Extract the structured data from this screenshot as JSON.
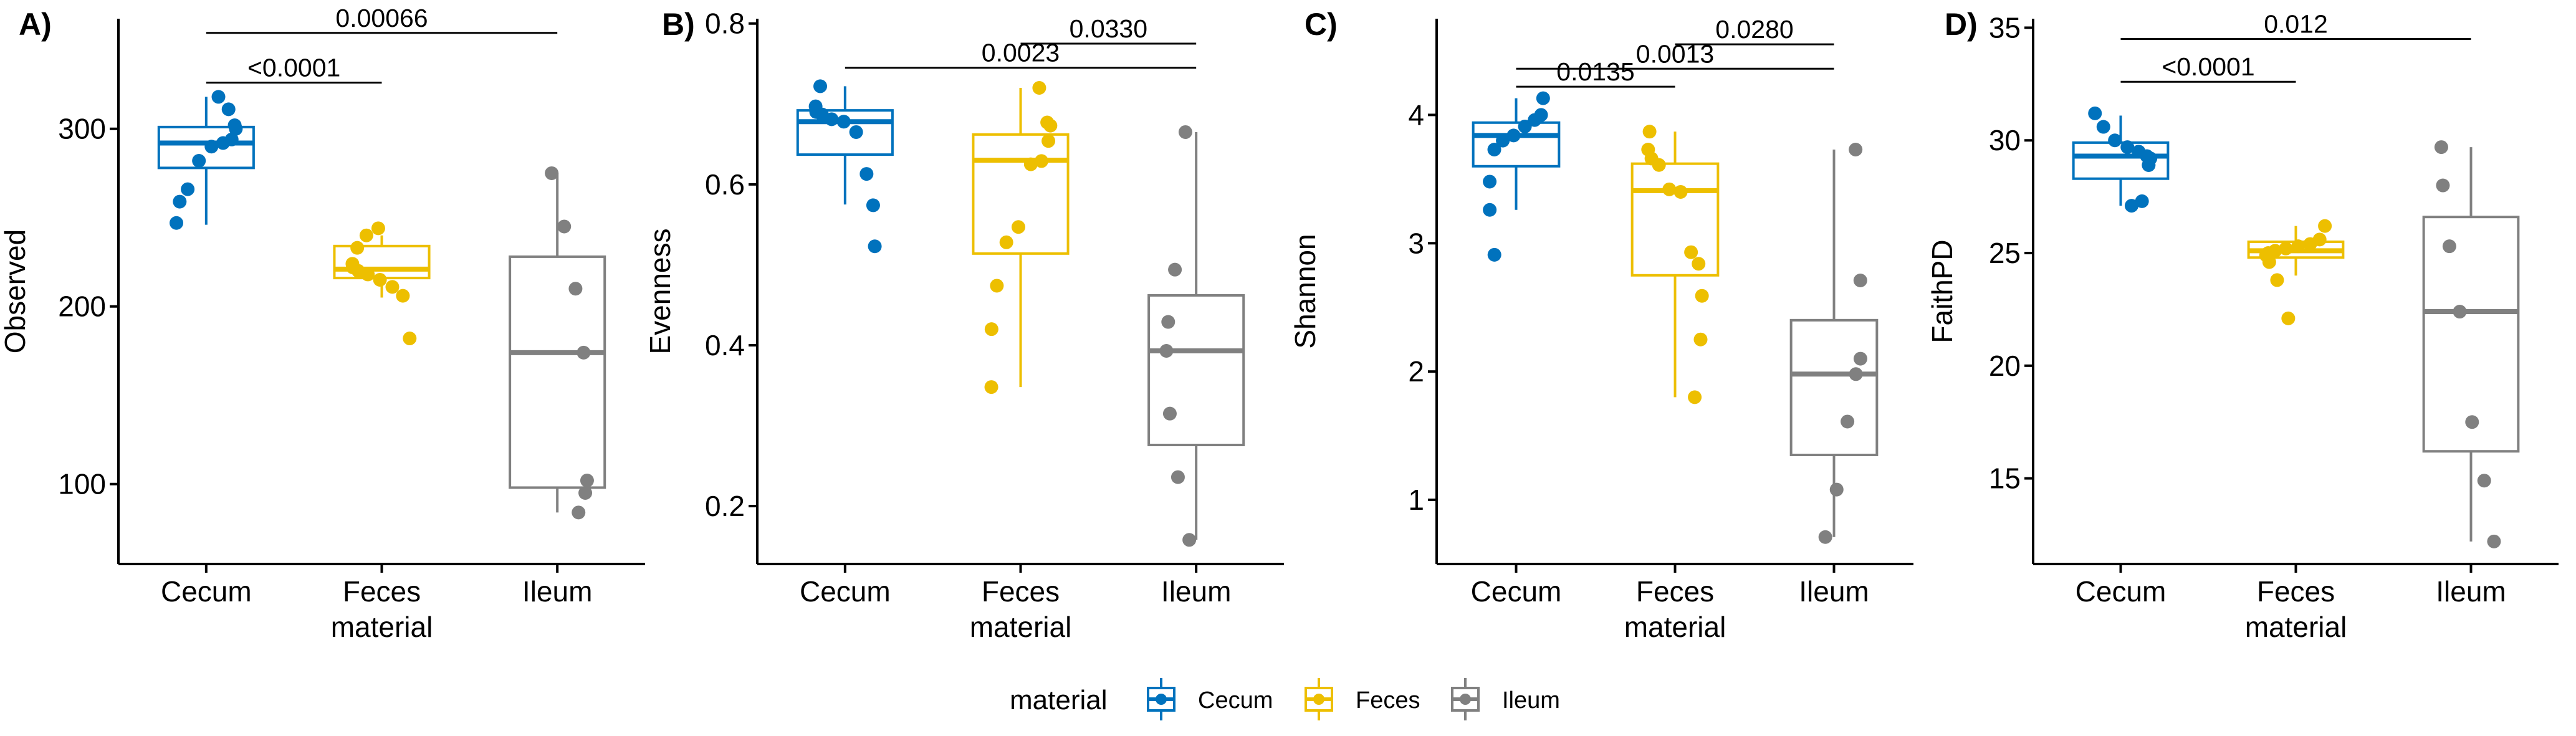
{
  "chart_data": [
    {
      "type": "box",
      "panel_label": "A)",
      "ylabel": "Observed",
      "xlabel": "material",
      "categories": [
        "Cecum",
        "Feces",
        "Ileum"
      ],
      "ylim": [
        55,
        362
      ],
      "yticks": [
        100,
        200,
        300
      ],
      "boxes": [
        {
          "category": "Cecum",
          "lower_whisker": 246,
          "q1": 278,
          "median": 292,
          "q3": 301,
          "upper_whisker": 318
        },
        {
          "category": "Feces",
          "lower_whisker": 205,
          "q1": 216,
          "median": 221,
          "q3": 234,
          "upper_whisker": 240
        },
        {
          "category": "Ileum",
          "lower_whisker": 84,
          "q1": 98,
          "median": 174,
          "q3": 228,
          "upper_whisker": 275
        }
      ],
      "points": [
        {
          "category": "Cecum",
          "values": [
            318,
            311,
            302,
            300,
            294,
            292,
            290,
            282,
            266,
            259,
            247
          ]
        },
        {
          "category": "Feces",
          "values": [
            244,
            240,
            233,
            224,
            222,
            220,
            218,
            215,
            211,
            206,
            182
          ]
        },
        {
          "category": "Ileum",
          "values": [
            275,
            245,
            210,
            174,
            102,
            95,
            84
          ]
        }
      ],
      "comparisons": [
        {
          "groups": [
            "Cecum",
            "Feces"
          ],
          "label": "<0.0001",
          "y": 326
        },
        {
          "groups": [
            "Cecum",
            "Ileum"
          ],
          "label": "0.00066",
          "y": 354
        }
      ]
    },
    {
      "type": "box",
      "panel_label": "B)",
      "ylabel": "Evenness",
      "xlabel": "material",
      "categories": [
        "Cecum",
        "Feces",
        "Ileum"
      ],
      "ylim": [
        0.128,
        0.806
      ],
      "yticks": [
        0.2,
        0.4,
        0.6,
        0.8
      ],
      "boxes": [
        {
          "category": "Cecum",
          "lower_whisker": 0.575,
          "q1": 0.637,
          "median": 0.678,
          "q3": 0.692,
          "upper_whisker": 0.722
        },
        {
          "category": "Feces",
          "lower_whisker": 0.348,
          "q1": 0.514,
          "median": 0.63,
          "q3": 0.662,
          "upper_whisker": 0.72
        },
        {
          "category": "Ileum",
          "lower_whisker": 0.158,
          "q1": 0.276,
          "median": 0.393,
          "q3": 0.462,
          "upper_whisker": 0.665
        }
      ],
      "points": [
        {
          "category": "Cecum",
          "values": [
            0.722,
            0.697,
            0.69,
            0.687,
            0.681,
            0.678,
            0.665,
            0.613,
            0.574,
            0.523
          ]
        },
        {
          "category": "Feces",
          "values": [
            0.72,
            0.677,
            0.673,
            0.654,
            0.629,
            0.625,
            0.547,
            0.528,
            0.474,
            0.42,
            0.348
          ]
        },
        {
          "category": "Ileum",
          "values": [
            0.665,
            0.494,
            0.429,
            0.393,
            0.315,
            0.236,
            0.158
          ]
        }
      ],
      "comparisons": [
        {
          "groups": [
            "Feces",
            "Ileum"
          ],
          "label": "0.0330",
          "y": 0.775
        },
        {
          "groups": [
            "Cecum",
            "Ileum"
          ],
          "label": "0.0023",
          "y": 0.745
        }
      ]
    },
    {
      "type": "box",
      "panel_label": "C)",
      "ylabel": "Shannon",
      "xlabel": "material",
      "categories": [
        "Cecum",
        "Feces",
        "Ileum"
      ],
      "ylim": [
        0.5,
        4.75
      ],
      "yticks": [
        1,
        2,
        3,
        4
      ],
      "boxes": [
        {
          "category": "Cecum",
          "lower_whisker": 3.26,
          "q1": 3.6,
          "median": 3.84,
          "q3": 3.94,
          "upper_whisker": 4.13
        },
        {
          "category": "Feces",
          "lower_whisker": 1.8,
          "q1": 2.75,
          "median": 3.41,
          "q3": 3.62,
          "upper_whisker": 3.87
        },
        {
          "category": "Ileum",
          "lower_whisker": 0.71,
          "q1": 1.35,
          "median": 1.98,
          "q3": 2.4,
          "upper_whisker": 3.73
        }
      ],
      "points": [
        {
          "category": "Cecum",
          "values": [
            4.13,
            4.0,
            3.96,
            3.91,
            3.84,
            3.8,
            3.73,
            3.48,
            3.26,
            2.91
          ]
        },
        {
          "category": "Feces",
          "values": [
            3.87,
            3.73,
            3.66,
            3.61,
            3.42,
            3.4,
            2.93,
            2.84,
            2.59,
            2.25,
            1.8
          ]
        },
        {
          "category": "Ileum",
          "values": [
            3.73,
            2.71,
            2.1,
            1.98,
            1.61,
            1.08,
            0.71
          ]
        }
      ],
      "comparisons": [
        {
          "groups": [
            "Feces",
            "Ileum"
          ],
          "label": "0.0280",
          "y": 4.55
        },
        {
          "groups": [
            "Cecum",
            "Ileum"
          ],
          "label": "0.0013",
          "y": 4.36
        },
        {
          "groups": [
            "Cecum",
            "Feces"
          ],
          "label": "0.0135",
          "y": 4.22
        }
      ]
    },
    {
      "type": "box",
      "panel_label": "D)",
      "ylabel": "FaithPD",
      "xlabel": "material",
      "categories": [
        "Cecum",
        "Feces",
        "Ileum"
      ],
      "ylim": [
        11.2,
        35.4
      ],
      "yticks": [
        15,
        20,
        25,
        30,
        35
      ],
      "boxes": [
        {
          "category": "Cecum",
          "lower_whisker": 27.1,
          "q1": 28.3,
          "median": 29.3,
          "q3": 29.9,
          "upper_whisker": 31.1
        },
        {
          "category": "Feces",
          "lower_whisker": 24.0,
          "q1": 24.8,
          "median": 25.1,
          "q3": 25.5,
          "upper_whisker": 26.2
        },
        {
          "category": "Ileum",
          "lower_whisker": 12.2,
          "q1": 16.2,
          "median": 22.4,
          "q3": 26.6,
          "upper_whisker": 29.7
        }
      ],
      "points": [
        {
          "category": "Cecum",
          "values": [
            31.2,
            30.6,
            30.0,
            29.7,
            29.5,
            29.3,
            29.2,
            28.9,
            27.3,
            27.1
          ]
        },
        {
          "category": "Feces",
          "values": [
            26.2,
            25.6,
            25.4,
            25.3,
            25.2,
            25.1,
            25.0,
            24.9,
            24.6,
            23.8,
            22.1
          ]
        },
        {
          "category": "Ileum",
          "values": [
            29.7,
            28.0,
            25.3,
            22.4,
            17.5,
            14.9,
            12.2
          ]
        }
      ],
      "comparisons": [
        {
          "groups": [
            "Cecum",
            "Feces"
          ],
          "label": "<0.0001",
          "y": 32.6
        },
        {
          "groups": [
            "Cecum",
            "Ileum"
          ],
          "label": "0.012",
          "y": 34.5
        }
      ]
    }
  ],
  "x_tick_labels": [
    "Cecum",
    "Feces",
    "Ileum"
  ],
  "x_axis_title": "material",
  "legend": {
    "title": "material",
    "position": "bottom",
    "entries": [
      {
        "label": "Cecum",
        "color": "#0072BD"
      },
      {
        "label": "Feces",
        "color": "#EDBF00"
      },
      {
        "label": "Ileum",
        "color": "#808080"
      }
    ]
  },
  "colors": {
    "Cecum": "#0072BD",
    "Feces": "#EDBF00",
    "Ileum": "#808080"
  }
}
